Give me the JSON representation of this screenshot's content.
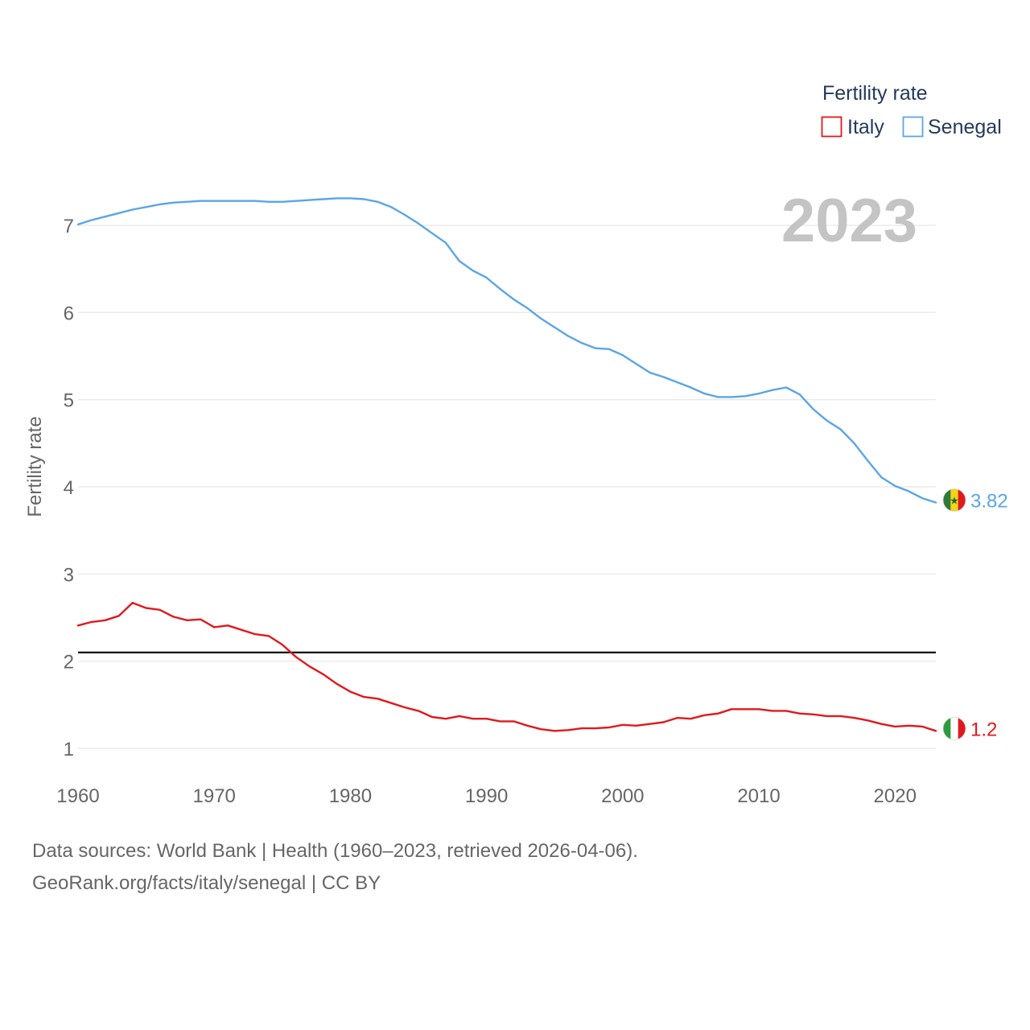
{
  "chart_data": {
    "type": "line",
    "title": "",
    "xlabel": "",
    "ylabel": "Fertility rate",
    "xlim": [
      1960,
      2023
    ],
    "ylim": [
      0.6,
      7.7
    ],
    "yticks": [
      1,
      2,
      3,
      4,
      5,
      6,
      7
    ],
    "xticks": [
      1960,
      1970,
      1980,
      1990,
      2000,
      2010,
      2020
    ],
    "legend_title": "Fertility rate",
    "legend_position": "top-right",
    "current_year": "2023",
    "reference_line": 2.1,
    "series": [
      {
        "name": "Italy",
        "color": "#e0191d",
        "flag": "italy-flag-icon",
        "end_label": "1.2",
        "x": [
          1960,
          1961,
          1962,
          1963,
          1964,
          1965,
          1966,
          1967,
          1968,
          1969,
          1970,
          1971,
          1972,
          1973,
          1974,
          1975,
          1976,
          1977,
          1978,
          1979,
          1980,
          1981,
          1982,
          1983,
          1984,
          1985,
          1986,
          1987,
          1988,
          1989,
          1990,
          1991,
          1992,
          1993,
          1994,
          1995,
          1996,
          1997,
          1998,
          1999,
          2000,
          2001,
          2002,
          2003,
          2004,
          2005,
          2006,
          2007,
          2008,
          2009,
          2010,
          2011,
          2012,
          2013,
          2014,
          2015,
          2016,
          2017,
          2018,
          2019,
          2020,
          2021,
          2022,
          2023
        ],
        "values": [
          2.41,
          2.45,
          2.47,
          2.52,
          2.67,
          2.61,
          2.59,
          2.51,
          2.47,
          2.48,
          2.39,
          2.41,
          2.36,
          2.31,
          2.29,
          2.19,
          2.05,
          1.94,
          1.85,
          1.74,
          1.65,
          1.59,
          1.57,
          1.52,
          1.47,
          1.43,
          1.36,
          1.34,
          1.37,
          1.34,
          1.34,
          1.31,
          1.31,
          1.26,
          1.22,
          1.2,
          1.21,
          1.23,
          1.23,
          1.24,
          1.27,
          1.26,
          1.28,
          1.3,
          1.35,
          1.34,
          1.38,
          1.4,
          1.45,
          1.45,
          1.45,
          1.43,
          1.43,
          1.4,
          1.39,
          1.37,
          1.37,
          1.35,
          1.32,
          1.28,
          1.25,
          1.26,
          1.25,
          1.2
        ]
      },
      {
        "name": "Senegal",
        "color": "#5aa5e6",
        "flag": "senegal-flag-icon",
        "end_label": "3.82",
        "x": [
          1960,
          1961,
          1962,
          1963,
          1964,
          1965,
          1966,
          1967,
          1968,
          1969,
          1970,
          1971,
          1972,
          1973,
          1974,
          1975,
          1976,
          1977,
          1978,
          1979,
          1980,
          1981,
          1982,
          1983,
          1984,
          1985,
          1986,
          1987,
          1988,
          1989,
          1990,
          1991,
          1992,
          1993,
          1994,
          1995,
          1996,
          1997,
          1998,
          1999,
          2000,
          2001,
          2002,
          2003,
          2004,
          2005,
          2006,
          2007,
          2008,
          2009,
          2010,
          2011,
          2012,
          2013,
          2014,
          2015,
          2016,
          2017,
          2018,
          2019,
          2020,
          2021,
          2022,
          2023
        ],
        "values": [
          7.01,
          7.06,
          7.1,
          7.14,
          7.18,
          7.21,
          7.24,
          7.26,
          7.27,
          7.28,
          7.28,
          7.28,
          7.28,
          7.28,
          7.27,
          7.27,
          7.28,
          7.29,
          7.3,
          7.31,
          7.31,
          7.3,
          7.27,
          7.21,
          7.12,
          7.02,
          6.91,
          6.8,
          6.59,
          6.48,
          6.4,
          6.27,
          6.15,
          6.05,
          5.93,
          5.83,
          5.73,
          5.65,
          5.59,
          5.58,
          5.51,
          5.41,
          5.31,
          5.26,
          5.2,
          5.14,
          5.07,
          5.03,
          5.03,
          5.04,
          5.07,
          5.11,
          5.14,
          5.06,
          4.89,
          4.76,
          4.66,
          4.5,
          4.3,
          4.11,
          4.01,
          3.95,
          3.87,
          3.82
        ]
      }
    ]
  },
  "footer": {
    "line1": "Data sources: World Bank | Health (1960–2023, retrieved 2026-04-06).",
    "line2": "GeoRank.org/facts/italy/senegal | CC BY"
  }
}
